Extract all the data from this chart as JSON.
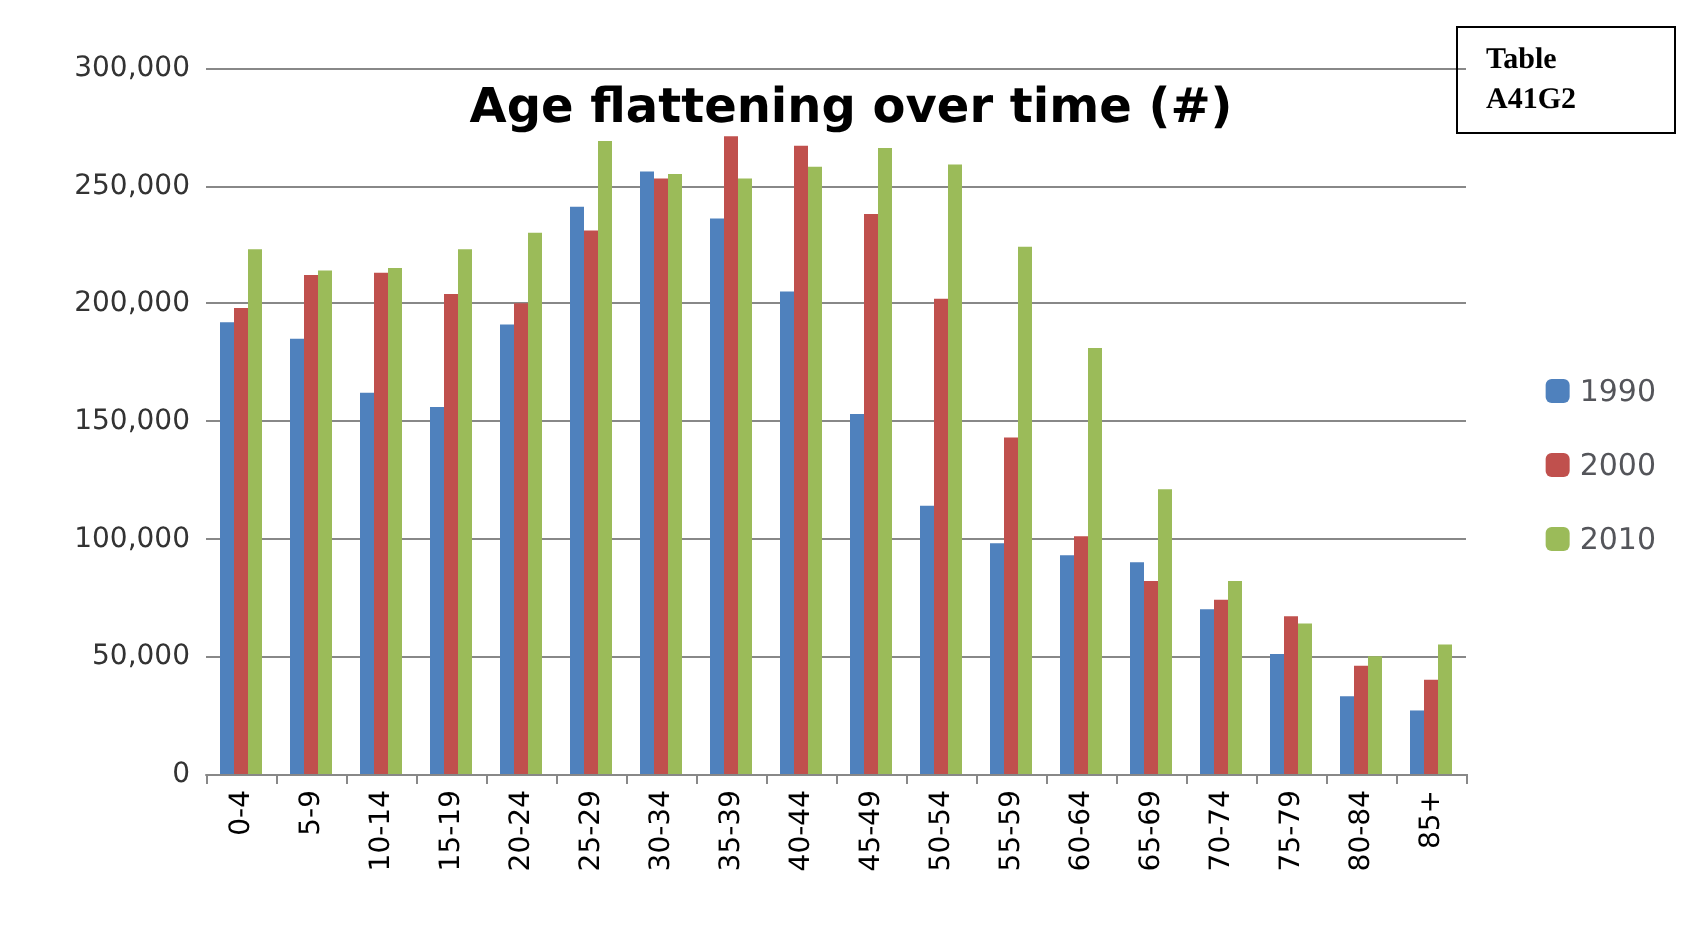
{
  "chart_data": {
    "type": "bar",
    "title": "Age flattening over time (#)",
    "annotations": [
      "Table\nA41G2"
    ],
    "categories": [
      "0-4",
      "5-9",
      "10-14",
      "15-19",
      "20-24",
      "25-29",
      "30-34",
      "35-39",
      "40-44",
      "45-49",
      "50-54",
      "55-59",
      "60-64",
      "65-69",
      "70-74",
      "75-79",
      "80-84",
      "85+"
    ],
    "series": [
      {
        "name": "1990",
        "color": "#4f81bd",
        "values": [
          192000,
          185000,
          162000,
          156000,
          191000,
          241000,
          256000,
          236000,
          205000,
          153000,
          114000,
          98000,
          93000,
          90000,
          70000,
          51000,
          33000,
          27000
        ]
      },
      {
        "name": "2000",
        "color": "#c0504d",
        "values": [
          198000,
          212000,
          213000,
          204000,
          200000,
          231000,
          253000,
          271000,
          267000,
          238000,
          202000,
          143000,
          101000,
          82000,
          74000,
          67000,
          46000,
          40000
        ]
      },
      {
        "name": "2010",
        "color": "#9bbb59",
        "values": [
          223000,
          214000,
          215000,
          223000,
          230000,
          269000,
          255000,
          253000,
          258000,
          266000,
          259000,
          224000,
          181000,
          121000,
          82000,
          64000,
          50000,
          55000
        ]
      }
    ],
    "ylim": [
      0,
      300000
    ],
    "yticks": [
      0,
      {
        "value": 50000,
        "label": "50,000"
      },
      {
        "value": 100000,
        "label": "100,000"
      },
      {
        "value": 150000,
        "label": "150,000"
      },
      {
        "value": 200000,
        "label": "200,000"
      },
      {
        "value": 250000,
        "label": "250,000"
      },
      {
        "value": 300000,
        "label": "300,000"
      }
    ],
    "grid": "y",
    "legend": "right"
  }
}
